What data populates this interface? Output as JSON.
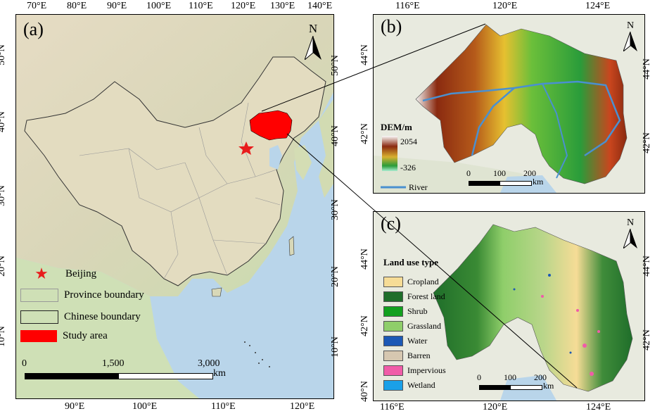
{
  "panel_a": {
    "label": "(a)",
    "top_ticks": [
      "70°E",
      "80°E",
      "90°E",
      "100°E",
      "110°E",
      "120°E",
      "130°E",
      "140°E"
    ],
    "bottom_ticks": [
      "90°E",
      "100°E",
      "110°E",
      "120°E"
    ],
    "left_ticks": [
      "50°N",
      "40°N",
      "30°N",
      "20°N",
      "10°N"
    ],
    "right_ticks": [
      "50°N",
      "40°N",
      "30°N",
      "20°N",
      "10°N"
    ],
    "north": "N",
    "legend": {
      "beijing": "Beijing",
      "province": "Province boundary",
      "chinese": "Chinese boundary",
      "study": "Study area"
    },
    "scalebar": {
      "t0": "0",
      "t1": "1,500",
      "t2": "3,000",
      "unit": "km"
    },
    "colors": {
      "study": "#ff0000",
      "beijing_star": "#e81c1c",
      "sea": "#b9d5ea"
    }
  },
  "panel_b": {
    "label": "(b)",
    "top_ticks": [
      "116°E",
      "120°E",
      "124°E"
    ],
    "left_ticks": [
      "44°N",
      "42°N"
    ],
    "right_ticks": [
      "44°N",
      "42°N"
    ],
    "north": "N",
    "dem_title": "DEM/m",
    "dem_max": "2054",
    "dem_min": "-326",
    "river": "River",
    "scalebar": {
      "t0": "0",
      "t1": "100",
      "t2": "200",
      "unit": "km"
    }
  },
  "panel_c": {
    "label": "(c)",
    "bottom_ticks": [
      "116°E",
      "120°E",
      "124°E"
    ],
    "left_ticks": [
      "44°N",
      "42°N",
      "40°N"
    ],
    "right_ticks": [
      "44°N",
      "42°N"
    ],
    "north": "N",
    "legend_title": "Land use type",
    "classes": [
      {
        "name": "Cropland",
        "color": "#f6dc96"
      },
      {
        "name": "Forest land",
        "color": "#1f6e2a"
      },
      {
        "name": "Shrub",
        "color": "#12a01e"
      },
      {
        "name": "Grassland",
        "color": "#8fce6a"
      },
      {
        "name": "Water",
        "color": "#1c58b5"
      },
      {
        "name": "Barren",
        "color": "#d6c7b0"
      },
      {
        "name": "Impervious",
        "color": "#f05ca8"
      },
      {
        "name": "Wetland",
        "color": "#1aa0e8"
      }
    ],
    "scalebar": {
      "t0": "0",
      "t1": "100",
      "t2": "200",
      "unit": "km"
    }
  }
}
